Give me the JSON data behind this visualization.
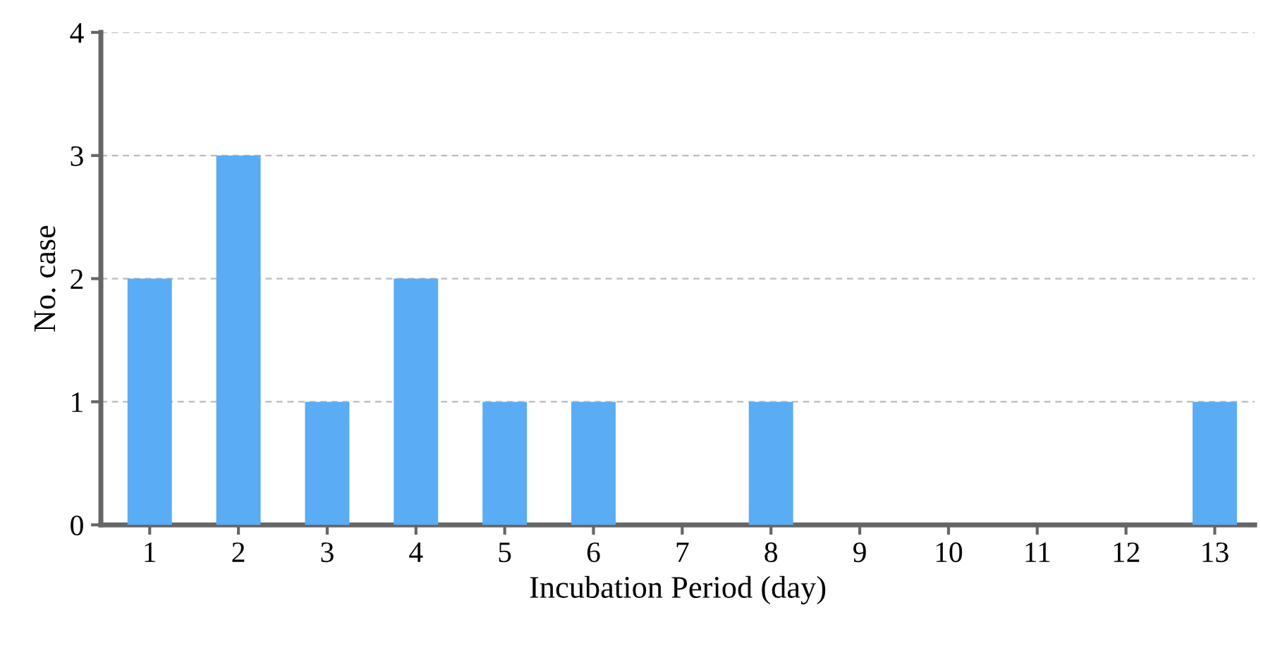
{
  "chart_data": {
    "type": "bar",
    "xlabel": "Incubation Period (day)",
    "ylabel": "No. case",
    "categories": [
      "1",
      "2",
      "3",
      "4",
      "5",
      "6",
      "7",
      "8",
      "9",
      "10",
      "11",
      "12",
      "13"
    ],
    "values": [
      2,
      3,
      1,
      2,
      1,
      1,
      0,
      1,
      0,
      0,
      0,
      0,
      1
    ],
    "color": "#5aacf4",
    "ylim": [
      0,
      4
    ],
    "yticks": [
      0,
      1,
      2,
      3,
      4
    ],
    "grid": "y"
  }
}
